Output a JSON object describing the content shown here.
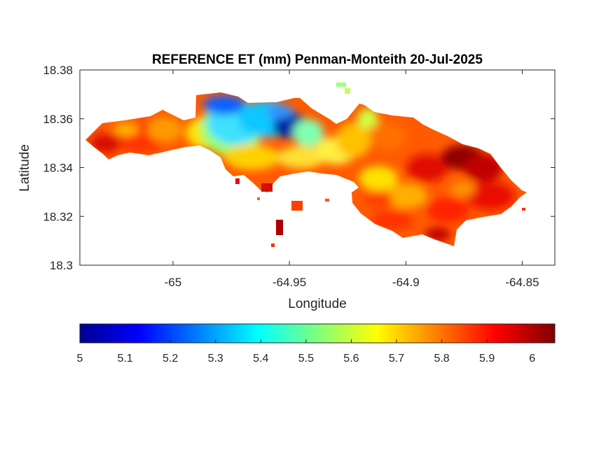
{
  "chart_data": {
    "type": "heatmap",
    "title": "REFERENCE ET (mm) Penman-Monteith 20-Jul-2025",
    "xlabel": "Longitude",
    "ylabel": "Latitude",
    "xlim": [
      -65.04,
      -64.836
    ],
    "ylim": [
      18.3,
      18.38
    ],
    "xticks": [
      -65,
      -64.95,
      -64.9,
      -64.85
    ],
    "xtick_labels": [
      "-65",
      "-64.95",
      "-64.9",
      "-64.85"
    ],
    "yticks": [
      18.3,
      18.32,
      18.34,
      18.36,
      18.38
    ],
    "ytick_labels": [
      "18.3",
      "18.32",
      "18.34",
      "18.36",
      "18.38"
    ],
    "grid": false,
    "colormap": "jet",
    "colorbar": {
      "location": "bottom",
      "range": [
        5,
        6.05
      ],
      "ticks": [
        5,
        5.1,
        5.2,
        5.3,
        5.4,
        5.5,
        5.6,
        5.7,
        5.8,
        5.9,
        6
      ],
      "tick_labels": [
        "5",
        "5.1",
        "5.2",
        "5.3",
        "5.4",
        "5.5",
        "5.6",
        "5.7",
        "5.8",
        "5.9",
        "6"
      ]
    },
    "field_summary": {
      "min_value": 5.0,
      "max_value": 6.05,
      "low_region": {
        "lon": -64.95,
        "lat": 18.356,
        "value": 5.05
      },
      "high_region": {
        "lon": -64.87,
        "lat": 18.34,
        "value": 6.0
      }
    }
  }
}
